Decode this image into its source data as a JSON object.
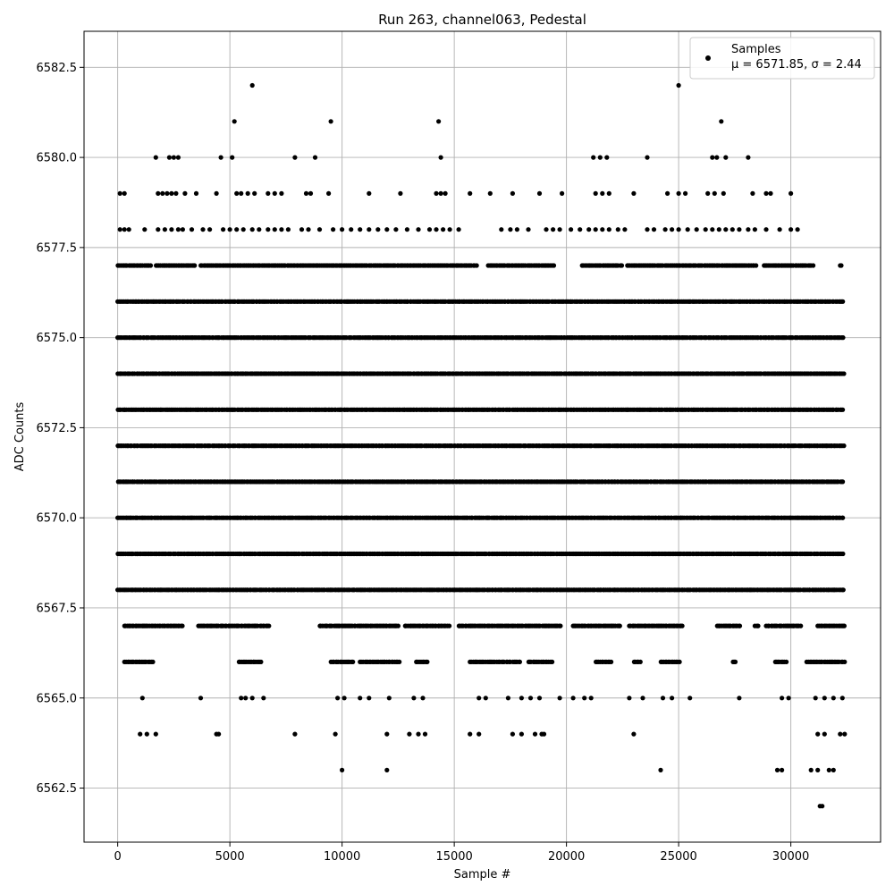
{
  "chart_data": {
    "type": "scatter",
    "title": "Run 263, channel063, Pedestal",
    "xlabel": "Sample #",
    "ylabel": "ADC Counts",
    "xlim": [
      -1500,
      34000
    ],
    "ylim": [
      6561.0,
      6583.5
    ],
    "xticks": [
      0,
      5000,
      10000,
      15000,
      20000,
      25000,
      30000
    ],
    "xtick_labels": [
      "0",
      "5000",
      "10000",
      "15000",
      "20000",
      "25000",
      "30000"
    ],
    "yticks": [
      6562.5,
      6565.0,
      6567.5,
      6570.0,
      6572.5,
      6575.0,
      6577.5,
      6580.0,
      6582.5
    ],
    "ytick_labels": [
      "6562.5",
      "6565.0",
      "6567.5",
      "6570.0",
      "6572.5",
      "6575.0",
      "6577.5",
      "6580.0",
      "6582.5"
    ],
    "grid": true,
    "legend": {
      "placement": "top-right",
      "label_line1": "Samples",
      "label_line2": "μ = 6571.85, σ = 2.44"
    },
    "marker_color": "#000000",
    "series": [
      {
        "name": "Samples",
        "mean": 6571.85,
        "sigma": 2.44,
        "bands": [
          {
            "y": 6577,
            "segments": [
              [
                0,
                1500
              ],
              [
                1700,
                3500
              ],
              [
                3700,
                13500
              ],
              [
                13600,
                16000
              ],
              [
                16500,
                19500
              ],
              [
                20700,
                22500
              ],
              [
                22700,
                28500
              ],
              [
                28800,
                31000
              ],
              [
                32200,
                32300
              ]
            ]
          },
          {
            "y": 6576,
            "segments": [
              [
                0,
                32400
              ]
            ]
          },
          {
            "y": 6575,
            "segments": [
              [
                0,
                32400
              ]
            ]
          },
          {
            "y": 6574,
            "segments": [
              [
                0,
                32400
              ]
            ]
          },
          {
            "y": 6573,
            "segments": [
              [
                0,
                32400
              ]
            ]
          },
          {
            "y": 6572,
            "segments": [
              [
                0,
                32400
              ]
            ]
          },
          {
            "y": 6571,
            "segments": [
              [
                0,
                32400
              ]
            ]
          },
          {
            "y": 6570,
            "segments": [
              [
                0,
                32400
              ]
            ]
          },
          {
            "y": 6569,
            "segments": [
              [
                0,
                32400
              ]
            ]
          },
          {
            "y": 6568,
            "segments": [
              [
                0,
                32400
              ]
            ]
          },
          {
            "y": 6567,
            "segments": [
              [
                300,
                2900
              ],
              [
                3600,
                6800
              ],
              [
                9000,
                12500
              ],
              [
                12800,
                14800
              ],
              [
                15200,
                19800
              ],
              [
                20300,
                22400
              ],
              [
                22800,
                25200
              ],
              [
                26700,
                27800
              ],
              [
                28400,
                28600
              ],
              [
                28900,
                30500
              ],
              [
                31200,
                32400
              ]
            ]
          },
          {
            "y": 6566,
            "segments": [
              [
                300,
                1600
              ],
              [
                5400,
                6400
              ],
              [
                9500,
                10500
              ],
              [
                10800,
                12600
              ],
              [
                13300,
                13800
              ],
              [
                15700,
                18000
              ],
              [
                18300,
                19400
              ],
              [
                21300,
                22000
              ],
              [
                23000,
                23300
              ],
              [
                24200,
                25100
              ],
              [
                27400,
                27600
              ],
              [
                29300,
                29800
              ],
              [
                30700,
                32400
              ]
            ]
          }
        ],
        "points": [
          [
            6000,
            6582
          ],
          [
            25000,
            6582
          ],
          [
            5200,
            6581
          ],
          [
            9500,
            6581
          ],
          [
            14300,
            6581
          ],
          [
            26900,
            6581
          ],
          [
            1700,
            6580
          ],
          [
            2300,
            6580
          ],
          [
            2500,
            6580
          ],
          [
            2700,
            6580
          ],
          [
            4600,
            6580
          ],
          [
            5100,
            6580
          ],
          [
            7900,
            6580
          ],
          [
            8800,
            6580
          ],
          [
            14400,
            6580
          ],
          [
            21200,
            6580
          ],
          [
            21500,
            6580
          ],
          [
            21800,
            6580
          ],
          [
            23600,
            6580
          ],
          [
            26500,
            6580
          ],
          [
            26700,
            6580
          ],
          [
            27100,
            6580
          ],
          [
            28100,
            6580
          ],
          [
            100,
            6579
          ],
          [
            300,
            6579
          ],
          [
            1800,
            6579
          ],
          [
            2000,
            6579
          ],
          [
            2200,
            6579
          ],
          [
            2400,
            6579
          ],
          [
            2600,
            6579
          ],
          [
            3000,
            6579
          ],
          [
            3500,
            6579
          ],
          [
            4400,
            6579
          ],
          [
            5300,
            6579
          ],
          [
            5500,
            6579
          ],
          [
            5800,
            6579
          ],
          [
            6100,
            6579
          ],
          [
            6700,
            6579
          ],
          [
            7000,
            6579
          ],
          [
            7300,
            6579
          ],
          [
            8400,
            6579
          ],
          [
            8600,
            6579
          ],
          [
            9400,
            6579
          ],
          [
            11200,
            6579
          ],
          [
            12600,
            6579
          ],
          [
            14200,
            6579
          ],
          [
            14400,
            6579
          ],
          [
            14600,
            6579
          ],
          [
            15700,
            6579
          ],
          [
            16600,
            6579
          ],
          [
            17600,
            6579
          ],
          [
            18800,
            6579
          ],
          [
            19800,
            6579
          ],
          [
            21300,
            6579
          ],
          [
            21600,
            6579
          ],
          [
            21900,
            6579
          ],
          [
            23000,
            6579
          ],
          [
            24500,
            6579
          ],
          [
            25000,
            6579
          ],
          [
            25300,
            6579
          ],
          [
            26300,
            6579
          ],
          [
            26600,
            6579
          ],
          [
            27000,
            6579
          ],
          [
            28300,
            6579
          ],
          [
            28900,
            6579
          ],
          [
            29100,
            6579
          ],
          [
            30000,
            6579
          ],
          [
            100,
            6578
          ],
          [
            300,
            6578
          ],
          [
            500,
            6578
          ],
          [
            1200,
            6578
          ],
          [
            1800,
            6578
          ],
          [
            2100,
            6578
          ],
          [
            2400,
            6578
          ],
          [
            2700,
            6578
          ],
          [
            2900,
            6578
          ],
          [
            3300,
            6578
          ],
          [
            3800,
            6578
          ],
          [
            4100,
            6578
          ],
          [
            4700,
            6578
          ],
          [
            5000,
            6578
          ],
          [
            5300,
            6578
          ],
          [
            5600,
            6578
          ],
          [
            6000,
            6578
          ],
          [
            6300,
            6578
          ],
          [
            6700,
            6578
          ],
          [
            7000,
            6578
          ],
          [
            7300,
            6578
          ],
          [
            7600,
            6578
          ],
          [
            8200,
            6578
          ],
          [
            8500,
            6578
          ],
          [
            9000,
            6578
          ],
          [
            9600,
            6578
          ],
          [
            10000,
            6578
          ],
          [
            10400,
            6578
          ],
          [
            10800,
            6578
          ],
          [
            11200,
            6578
          ],
          [
            11600,
            6578
          ],
          [
            12000,
            6578
          ],
          [
            12400,
            6578
          ],
          [
            12900,
            6578
          ],
          [
            13400,
            6578
          ],
          [
            13900,
            6578
          ],
          [
            14200,
            6578
          ],
          [
            14500,
            6578
          ],
          [
            14800,
            6578
          ],
          [
            15200,
            6578
          ],
          [
            17100,
            6578
          ],
          [
            17500,
            6578
          ],
          [
            17800,
            6578
          ],
          [
            18300,
            6578
          ],
          [
            19100,
            6578
          ],
          [
            19400,
            6578
          ],
          [
            19700,
            6578
          ],
          [
            20200,
            6578
          ],
          [
            20600,
            6578
          ],
          [
            21000,
            6578
          ],
          [
            21300,
            6578
          ],
          [
            21600,
            6578
          ],
          [
            21900,
            6578
          ],
          [
            22300,
            6578
          ],
          [
            22600,
            6578
          ],
          [
            23600,
            6578
          ],
          [
            23900,
            6578
          ],
          [
            24400,
            6578
          ],
          [
            24700,
            6578
          ],
          [
            25000,
            6578
          ],
          [
            25400,
            6578
          ],
          [
            25800,
            6578
          ],
          [
            26200,
            6578
          ],
          [
            26500,
            6578
          ],
          [
            26800,
            6578
          ],
          [
            27100,
            6578
          ],
          [
            27400,
            6578
          ],
          [
            27700,
            6578
          ],
          [
            28100,
            6578
          ],
          [
            28400,
            6578
          ],
          [
            28900,
            6578
          ],
          [
            29500,
            6578
          ],
          [
            30000,
            6578
          ],
          [
            30300,
            6578
          ],
          [
            1100,
            6565
          ],
          [
            3700,
            6565
          ],
          [
            5500,
            6565
          ],
          [
            5700,
            6565
          ],
          [
            6000,
            6565
          ],
          [
            6500,
            6565
          ],
          [
            9800,
            6565
          ],
          [
            10100,
            6565
          ],
          [
            10800,
            6565
          ],
          [
            11200,
            6565
          ],
          [
            12100,
            6565
          ],
          [
            13200,
            6565
          ],
          [
            13600,
            6565
          ],
          [
            16100,
            6565
          ],
          [
            16400,
            6565
          ],
          [
            17400,
            6565
          ],
          [
            18000,
            6565
          ],
          [
            18400,
            6565
          ],
          [
            18800,
            6565
          ],
          [
            19700,
            6565
          ],
          [
            20300,
            6565
          ],
          [
            20800,
            6565
          ],
          [
            21100,
            6565
          ],
          [
            22800,
            6565
          ],
          [
            23400,
            6565
          ],
          [
            24300,
            6565
          ],
          [
            24700,
            6565
          ],
          [
            25500,
            6565
          ],
          [
            27700,
            6565
          ],
          [
            29600,
            6565
          ],
          [
            29900,
            6565
          ],
          [
            31100,
            6565
          ],
          [
            31500,
            6565
          ],
          [
            31900,
            6565
          ],
          [
            32300,
            6565
          ],
          [
            1000,
            6564
          ],
          [
            1300,
            6564
          ],
          [
            1700,
            6564
          ],
          [
            4400,
            6564
          ],
          [
            4500,
            6564
          ],
          [
            7900,
            6564
          ],
          [
            9700,
            6564
          ],
          [
            12000,
            6564
          ],
          [
            13000,
            6564
          ],
          [
            13400,
            6564
          ],
          [
            13700,
            6564
          ],
          [
            15700,
            6564
          ],
          [
            16100,
            6564
          ],
          [
            17600,
            6564
          ],
          [
            18000,
            6564
          ],
          [
            18600,
            6564
          ],
          [
            18900,
            6564
          ],
          [
            19000,
            6564
          ],
          [
            23000,
            6564
          ],
          [
            31200,
            6564
          ],
          [
            31500,
            6564
          ],
          [
            32200,
            6564
          ],
          [
            32400,
            6564
          ],
          [
            10000,
            6563
          ],
          [
            12000,
            6563
          ],
          [
            24200,
            6563
          ],
          [
            29400,
            6563
          ],
          [
            29600,
            6563
          ],
          [
            30900,
            6563
          ],
          [
            31200,
            6563
          ],
          [
            31700,
            6563
          ],
          [
            31900,
            6563
          ],
          [
            31300,
            6562
          ],
          [
            31400,
            6562
          ]
        ]
      }
    ]
  }
}
